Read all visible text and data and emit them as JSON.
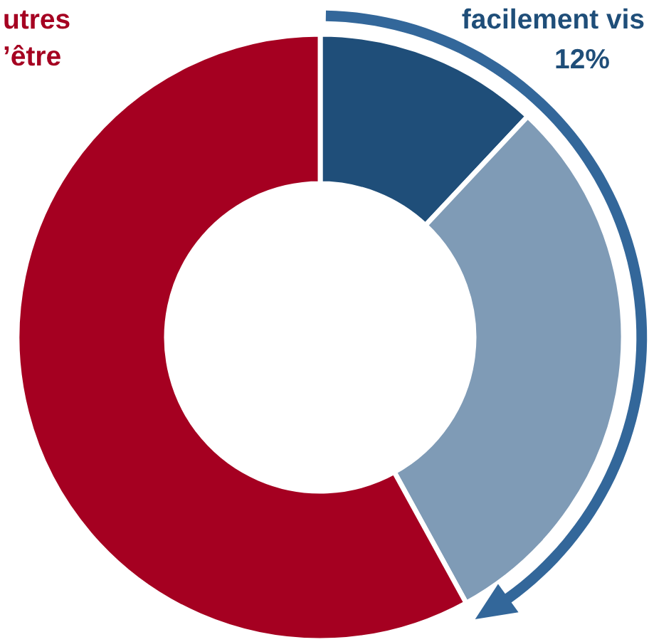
{
  "chart_data": {
    "type": "donut",
    "categories": [
      "facilement vis",
      null,
      "utres\n’être"
    ],
    "values": [
      12,
      30,
      58
    ],
    "colors": [
      "#1f4e79",
      "#7f9bb6",
      "#a50021"
    ],
    "value_labels": [
      "12%",
      null,
      null
    ]
  }
}
